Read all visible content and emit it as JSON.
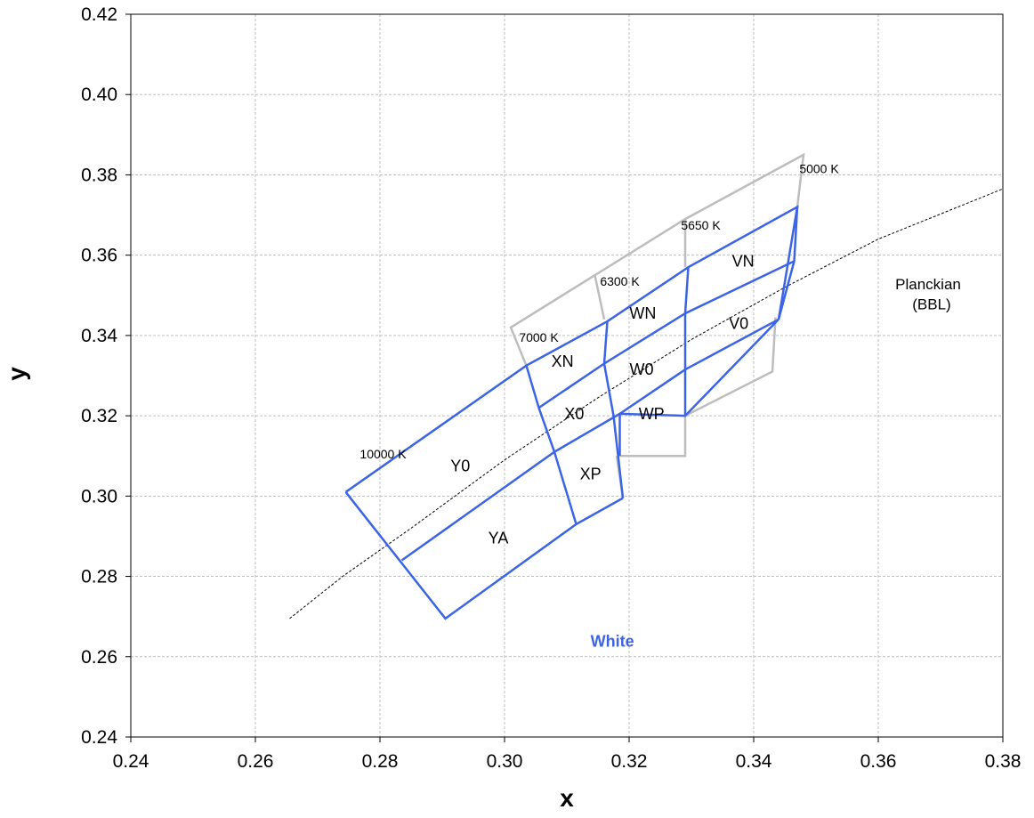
{
  "chart_data": {
    "type": "line",
    "xlabel": "x",
    "ylabel": "y",
    "xlim": [
      0.24,
      0.38
    ],
    "ylim": [
      0.24,
      0.42
    ],
    "xticks": [
      "0.24",
      "0.26",
      "0.28",
      "0.30",
      "0.32",
      "0.34",
      "0.36",
      "0.38"
    ],
    "yticks": [
      "0.24",
      "0.26",
      "0.28",
      "0.30",
      "0.32",
      "0.34",
      "0.36",
      "0.38",
      "0.40",
      "0.42"
    ],
    "grid": true,
    "colors": {
      "blue": "#3c64e6",
      "gray": "#bdbdbd",
      "grid": "#bfbfbf",
      "curve": "#000000"
    },
    "planckian_label": [
      "Planckian",
      "(BBL)"
    ],
    "planckian_curve": [
      [
        0.2655,
        0.2695
      ],
      [
        0.274,
        0.28
      ],
      [
        0.285,
        0.292
      ],
      [
        0.3,
        0.309
      ],
      [
        0.315,
        0.3245
      ],
      [
        0.33,
        0.339
      ],
      [
        0.345,
        0.352
      ],
      [
        0.36,
        0.364
      ],
      [
        0.38,
        0.3765
      ]
    ],
    "cct_labels": [
      {
        "text": "10000 K",
        "x": 0.2805,
        "y": 0.3105
      },
      {
        "text": "7000 K",
        "x": 0.3055,
        "y": 0.3395
      },
      {
        "text": "6300 K",
        "x": 0.3185,
        "y": 0.3535
      },
      {
        "text": "5650 K",
        "x": 0.3315,
        "y": 0.3675
      },
      {
        "text": "5000 K",
        "x": 0.3505,
        "y": 0.3815
      }
    ],
    "gray_lines": [
      [
        [
          0.3035,
          0.3325
        ],
        [
          0.301,
          0.342
        ],
        [
          0.3145,
          0.355
        ],
        [
          0.329,
          0.369
        ],
        [
          0.348,
          0.385
        ],
        [
          0.347,
          0.372
        ]
      ],
      [
        [
          0.3145,
          0.355
        ],
        [
          0.316,
          0.344
        ]
      ],
      [
        [
          0.329,
          0.369
        ],
        [
          0.329,
          0.357
        ]
      ],
      [
        [
          0.3435,
          0.3445
        ],
        [
          0.343,
          0.331
        ],
        [
          0.329,
          0.32
        ]
      ],
      [
        [
          0.329,
          0.32
        ],
        [
          0.329,
          0.31
        ],
        [
          0.3185,
          0.31
        ]
      ],
      [
        [
          0.318,
          0.31
        ],
        [
          0.319,
          0.2995
        ]
      ]
    ],
    "blue_lines": [
      [
        [
          0.2745,
          0.301
        ],
        [
          0.3035,
          0.3325
        ],
        [
          0.3165,
          0.3435
        ],
        [
          0.3295,
          0.357
        ],
        [
          0.347,
          0.372
        ],
        [
          0.344,
          0.344
        ]
      ],
      [
        [
          0.2745,
          0.301
        ],
        [
          0.2905,
          0.2695
        ],
        [
          0.3115,
          0.293
        ],
        [
          0.319,
          0.2995
        ]
      ],
      [
        [
          0.2835,
          0.284
        ],
        [
          0.308,
          0.311
        ],
        [
          0.3185,
          0.3205
        ],
        [
          0.329,
          0.32
        ],
        [
          0.344,
          0.344
        ]
      ],
      [
        [
          0.3055,
          0.322
        ],
        [
          0.316,
          0.333
        ],
        [
          0.329,
          0.3455
        ],
        [
          0.3465,
          0.3585
        ]
      ],
      [
        [
          0.3185,
          0.31
        ],
        [
          0.3185,
          0.3205
        ],
        [
          0.329,
          0.3315
        ],
        [
          0.344,
          0.344
        ]
      ],
      [
        [
          0.3035,
          0.3325
        ],
        [
          0.3055,
          0.322
        ],
        [
          0.308,
          0.311
        ],
        [
          0.3115,
          0.293
        ]
      ],
      [
        [
          0.3165,
          0.3435
        ],
        [
          0.316,
          0.333
        ],
        [
          0.3175,
          0.32
        ],
        [
          0.319,
          0.2995
        ]
      ],
      [
        [
          0.3295,
          0.357
        ],
        [
          0.329,
          0.3455
        ],
        [
          0.329,
          0.32
        ]
      ],
      [
        [
          0.347,
          0.372
        ],
        [
          0.3465,
          0.3585
        ],
        [
          0.344,
          0.344
        ]
      ]
    ],
    "region_labels": [
      {
        "text": "VN",
        "x": 0.3383,
        "y": 0.3585
      },
      {
        "text": "WN",
        "x": 0.3222,
        "y": 0.3455
      },
      {
        "text": "V0",
        "x": 0.3376,
        "y": 0.343
      },
      {
        "text": "XN",
        "x": 0.3093,
        "y": 0.3335
      },
      {
        "text": "W0",
        "x": 0.322,
        "y": 0.3315
      },
      {
        "text": "X0",
        "x": 0.3112,
        "y": 0.3205
      },
      {
        "text": "WP",
        "x": 0.3236,
        "y": 0.3205
      },
      {
        "text": "Y0",
        "x": 0.2929,
        "y": 0.3075
      },
      {
        "text": "XP",
        "x": 0.3138,
        "y": 0.3055
      },
      {
        "text": "YA",
        "x": 0.299,
        "y": 0.2895
      }
    ],
    "white_label": {
      "text": "White",
      "x": 0.3173,
      "y": 0.2625,
      "color": "#3c64e6"
    }
  }
}
